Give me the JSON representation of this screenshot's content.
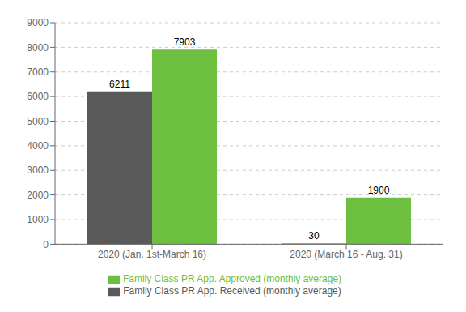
{
  "chart_data": {
    "type": "bar",
    "categories": [
      "2020 (Jan. 1st-March 16)",
      "2020 (March 16 - Aug. 31)"
    ],
    "series": [
      {
        "name": "Family Class PR App. Received (monthly average)",
        "color": "#595959",
        "values": [
          6211,
          30
        ]
      },
      {
        "name": "Family Class PR App. Approved (monthly average)",
        "color": "#6dbf40",
        "values": [
          7903,
          1900
        ]
      }
    ],
    "ylim": [
      0,
      9000
    ],
    "yticks": [
      0,
      1000,
      2000,
      3000,
      4000,
      5000,
      6000,
      7000,
      8000,
      9000
    ],
    "grid": true,
    "legend": "bottom",
    "data_labels": true
  }
}
